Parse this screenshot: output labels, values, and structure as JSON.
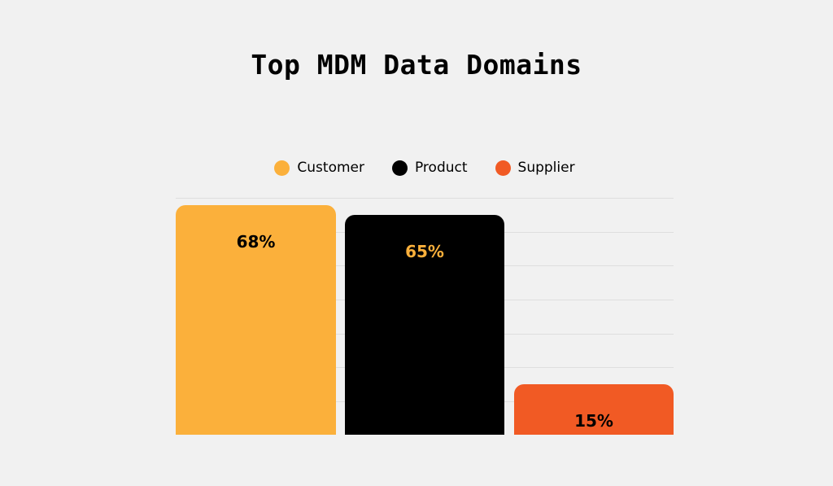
{
  "chart_data": {
    "type": "bar",
    "title": "Top MDM Data Domains",
    "categories": [
      "Customer",
      "Product",
      "Supplier"
    ],
    "values": [
      68,
      65,
      15
    ],
    "value_labels": [
      "68%",
      "65%",
      "15%"
    ],
    "colors": [
      "#fbb03b",
      "#000000",
      "#f15a24"
    ],
    "label_colors": [
      "#000000",
      "#fbb03b",
      "#000000"
    ],
    "xlabel": "",
    "ylabel": "",
    "ylim": [
      0,
      70
    ],
    "grid": true,
    "legend_position": "top",
    "legend": [
      "Customer",
      "Product",
      "Supplier"
    ]
  }
}
